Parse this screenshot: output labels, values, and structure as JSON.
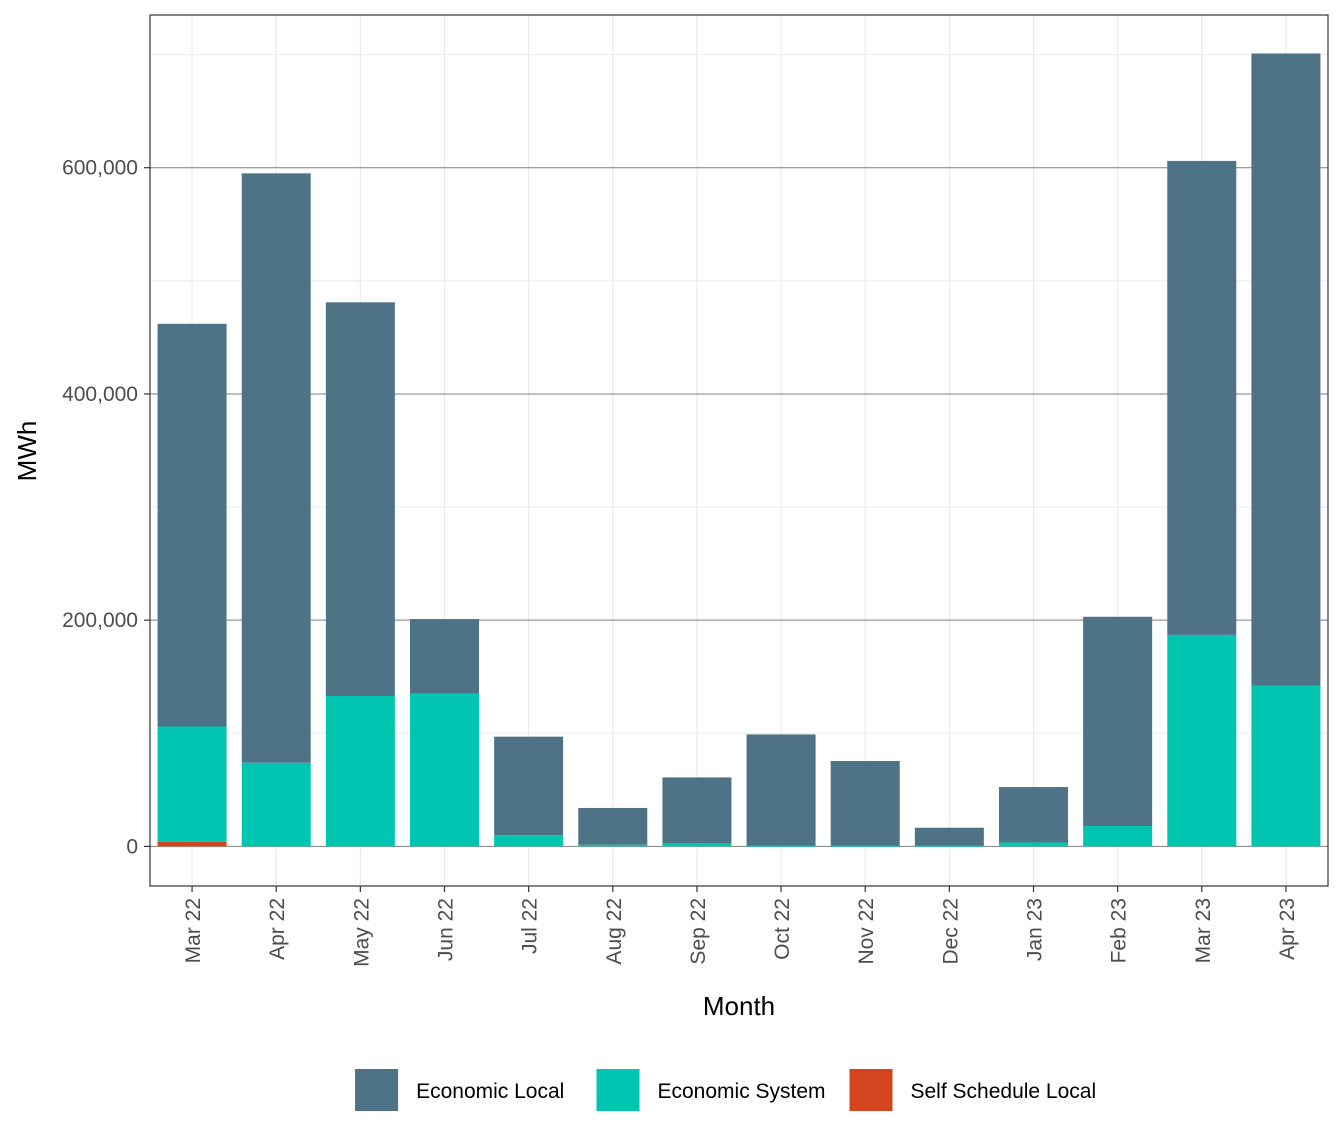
{
  "chart_data": {
    "type": "bar",
    "stacked": true,
    "xlabel": "Month",
    "ylabel": "MWh",
    "categories": [
      "Mar 22",
      "Apr 22",
      "May 22",
      "Jun 22",
      "Jul 22",
      "Aug 22",
      "Sep 22",
      "Oct 22",
      "Nov 22",
      "Dec 22",
      "Jan 23",
      "Feb 23",
      "Mar 23",
      "Apr 23"
    ],
    "series": [
      {
        "name": "Self Schedule Local",
        "color": "#D2451E",
        "values": [
          4000,
          0,
          0,
          0,
          0,
          0,
          0,
          0,
          0,
          0,
          0,
          0,
          0,
          0
        ]
      },
      {
        "name": "Economic System",
        "color": "#00C5B0",
        "values": [
          102000,
          74000,
          133000,
          135000,
          10000,
          1500,
          3000,
          500,
          500,
          500,
          3500,
          18000,
          187000,
          142000
        ]
      },
      {
        "name": "Economic Local",
        "color": "#4E7286",
        "values": [
          356000,
          521000,
          348000,
          66000,
          87000,
          32500,
          58000,
          98500,
          75000,
          16000,
          49000,
          185000,
          419000,
          559000
        ]
      }
    ],
    "ylim": [
      -35000,
      735000
    ],
    "yticks": [
      0,
      200000,
      400000,
      600000
    ],
    "ytick_labels": [
      "0",
      "200,000",
      "400,000",
      "600,000"
    ],
    "grid": true,
    "legend_position": "bottom",
    "legend_order": [
      "Economic Local",
      "Economic System",
      "Self Schedule Local"
    ]
  }
}
